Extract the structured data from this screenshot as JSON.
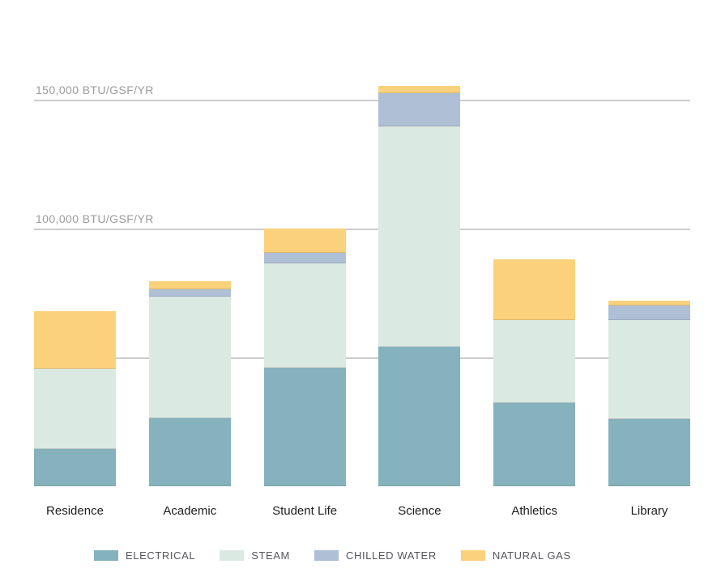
{
  "chart_data": {
    "type": "bar",
    "stacked": true,
    "title": "",
    "xlabel": "",
    "ylabel": "BTU/GSF/YR",
    "ylim": [
      0,
      160000
    ],
    "legend_position": "bottom",
    "grid": true,
    "gridlines": [
      50000,
      100000,
      150000
    ],
    "yticks": [
      {
        "value": 100000,
        "label": "100,000 BTU/GSF/YR"
      },
      {
        "value": 150000,
        "label": "150,000 BTU/GSF/YR"
      }
    ],
    "categories": [
      "Residence",
      "Academic",
      "Student Life",
      "Science",
      "Athletics",
      "Library"
    ],
    "series": [
      {
        "name": "ELECTRICAL",
        "color": "#85B2BC",
        "values": [
          14500,
          26500,
          46000,
          54000,
          32500,
          26000
        ]
      },
      {
        "name": "STEAM",
        "color": "#DBE9E3",
        "values": [
          31000,
          47000,
          40500,
          85500,
          32000,
          38500
        ]
      },
      {
        "name": "CHILLED WATER",
        "color": "#AEBFD6",
        "values": [
          0,
          3000,
          4000,
          13000,
          0,
          5500
        ]
      },
      {
        "name": "NATURAL GAS",
        "color": "#FBD17C",
        "values": [
          22500,
          3000,
          9500,
          3000,
          23500,
          2000
        ]
      }
    ],
    "totals": [
      68000,
      79500,
      100000,
      155500,
      88000,
      72000
    ]
  },
  "colors": {
    "background": "#ffffff",
    "gridline": "#cccccc",
    "axis_tick_text": "#9c9c9c",
    "category_text": "#1e1e1e",
    "legend_text": "#55565a"
  }
}
